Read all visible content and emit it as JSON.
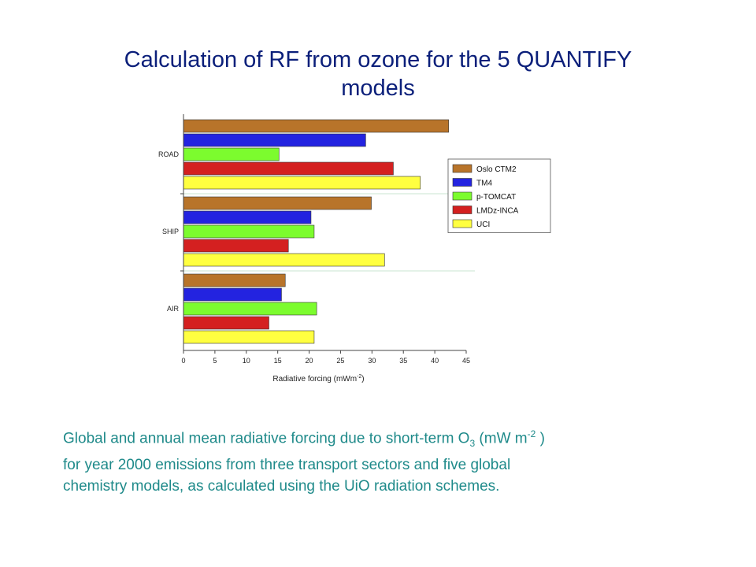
{
  "slide": {
    "title_line1": "Calculation of RF from ozone for the 5 QUANTIFY",
    "title_line2": "models"
  },
  "caption": {
    "line1_a": "Global and annual mean radiative forcing due to short-term O",
    "line1_sub": "3",
    "line1_b": "  (mW m",
    "line1_sup": "-2",
    "line1_c": " )",
    "line2": "for year 2000 emissions from three transport sectors and five global",
    "line3": "chemistry models, as calculated using the UiO radiation schemes."
  },
  "chart_data": {
    "type": "bar",
    "orientation": "horizontal",
    "categories": [
      "ROAD",
      "SHIP",
      "AIR"
    ],
    "series": [
      {
        "name": "Oslo CTM2",
        "color": "#b8742a",
        "values": [
          42.2,
          29.9,
          16.2
        ]
      },
      {
        "name": "TM4",
        "color": "#2323e0",
        "values": [
          29.0,
          20.3,
          15.6
        ]
      },
      {
        "name": "p-TOMCAT",
        "color": "#7cfc2e",
        "values": [
          15.2,
          20.8,
          21.2
        ]
      },
      {
        "name": "LMDz-INCA",
        "color": "#d42020",
        "values": [
          33.4,
          16.7,
          13.6
        ]
      },
      {
        "name": "UCI",
        "color": "#ffff40",
        "values": [
          37.7,
          32.0,
          20.8
        ]
      }
    ],
    "xlabel": "Radiative forcing (mWm",
    "xlabel_sup": "-2",
    "xlabel_end": ")",
    "xlim": [
      0,
      45
    ],
    "xticks": [
      0,
      5,
      10,
      15,
      20,
      25,
      30,
      35,
      40,
      45
    ],
    "legend_position": "right",
    "grid": false
  }
}
